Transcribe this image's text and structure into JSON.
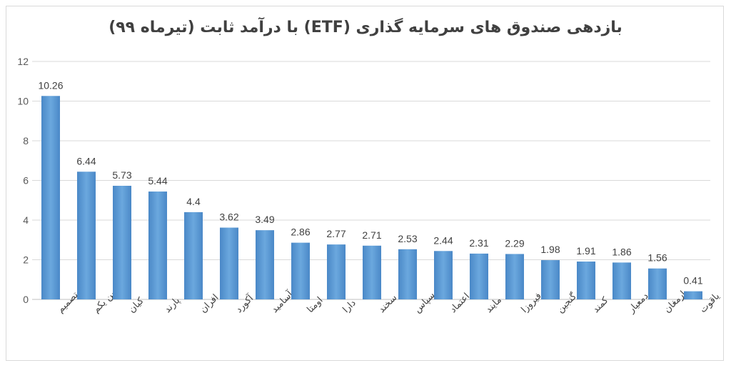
{
  "chart_data": {
    "type": "bar",
    "title": "بازدهی صندوق های سرمایه گذاری (ETF) با درآمد ثابت (تیرماه ۹۹)",
    "xlabel": "",
    "ylabel": "",
    "ylim": [
      0,
      12
    ],
    "yticks": [
      0,
      2,
      4,
      6,
      8,
      10,
      12
    ],
    "grid": true,
    "bar_color": "#5b9bd5",
    "categories": [
      "تصمیم",
      "امین یکم",
      "کیان",
      "پارند",
      "افران",
      "آکورد",
      "آسامید",
      "اومتا",
      "دارا",
      "سخند",
      "سپاس",
      "اعتماد",
      "مایند",
      "فیروزا",
      "گنجین",
      "کمند",
      "دمعیار",
      "ارمغان",
      "یاقوت"
    ],
    "values": [
      10.26,
      6.44,
      5.73,
      5.44,
      4.4,
      3.62,
      3.49,
      2.86,
      2.77,
      2.71,
      2.53,
      2.44,
      2.31,
      2.29,
      1.98,
      1.91,
      1.86,
      1.56,
      0.41
    ],
    "value_labels": [
      "10.26",
      "6.44",
      "5.73",
      "5.44",
      "4.4",
      "3.62",
      "3.49",
      "2.86",
      "2.77",
      "2.71",
      "2.53",
      "2.44",
      "2.31",
      "2.29",
      "1.98",
      "1.91",
      "1.86",
      "1.56",
      "0.41"
    ]
  }
}
